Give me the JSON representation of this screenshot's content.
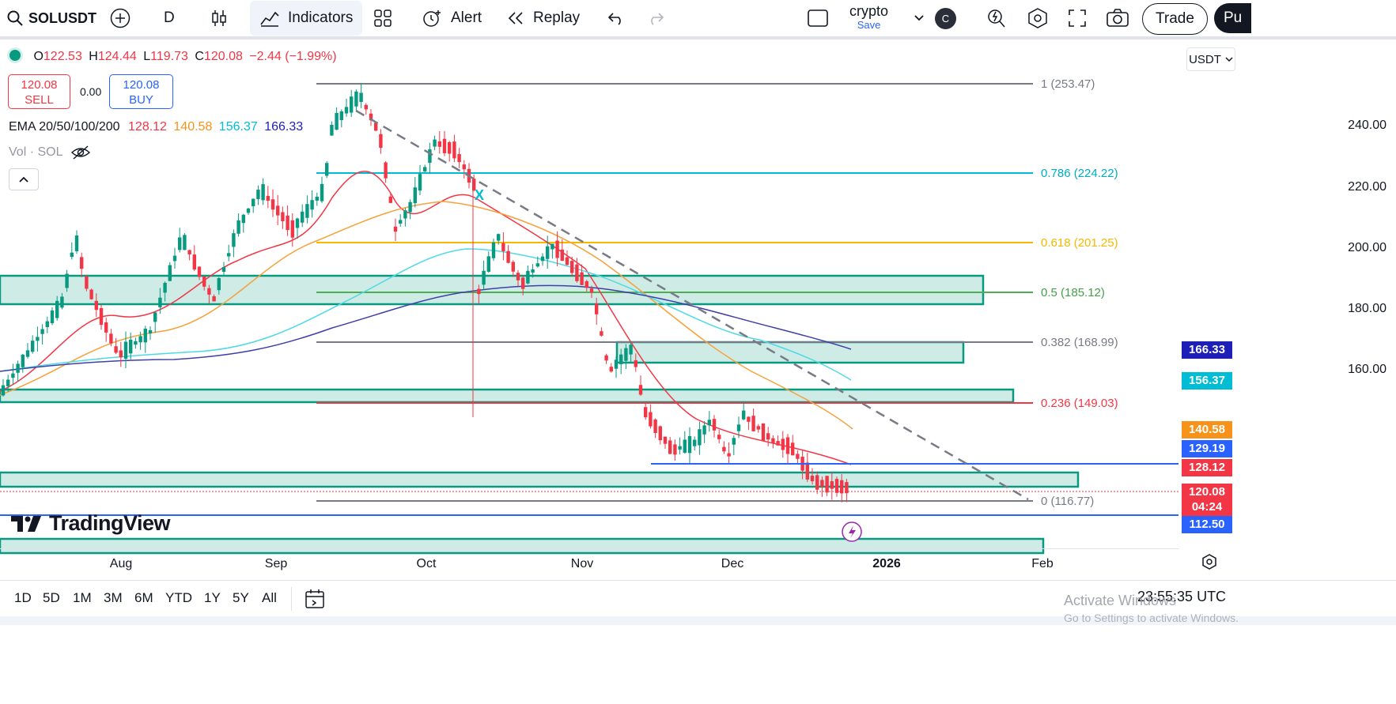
{
  "toolbar": {
    "symbol": "SOLUSDT",
    "interval": "D",
    "indicators_label": "Indicators",
    "alert_label": "Alert",
    "replay_label": "Replay",
    "layout_name": "crypto",
    "save_label": "Save",
    "avatar_letter": "C",
    "trade_label": "Trade",
    "publish_label": "Pu"
  },
  "legend": {
    "o_label": "O",
    "open": "122.53",
    "h_label": "H",
    "high": "124.44",
    "l_label": "L",
    "low": "119.73",
    "c_label": "C",
    "close": "120.08",
    "change": "−2.44 (−1.99%)",
    "sell_price": "120.08",
    "sell_label": "SELL",
    "spread": "0.00",
    "buy_price": "120.08",
    "buy_label": "BUY",
    "ema_label": "EMA 20/50/100/200",
    "ema20": "128.12",
    "ema50": "140.58",
    "ema100": "156.37",
    "ema200": "166.33",
    "vol_label": "Vol · SOL"
  },
  "colors": {
    "up": "#089981",
    "down": "#f23645",
    "ema20": "#f23645",
    "ema50": "#f7a13b",
    "ema100": "#4dd9e6",
    "ema200": "#3f3fa8",
    "fib_1": "#787b86",
    "fib_786": "#00bcd4",
    "fib_618": "#f5b800",
    "fib_5": "#4caf50",
    "fib_382": "#787b86",
    "fib_236": "#f23645",
    "fib_0": "#787b86",
    "zone": "#089981",
    "hline": "#2962ff"
  },
  "currency_selector": "USDT",
  "price_axis": [
    "240.00",
    "220.00",
    "200.00",
    "180.00",
    "160.00"
  ],
  "price_tags": [
    {
      "label": "166.33",
      "color": "#1e1eb8"
    },
    {
      "label": "156.37",
      "color": "#00bcd4"
    },
    {
      "label": "140.58",
      "color": "#f7931a"
    },
    {
      "label": "129.19",
      "color": "#2962ff"
    },
    {
      "label": "128.12",
      "color": "#f23645"
    },
    {
      "label": "120.08",
      "color": "#f23645"
    },
    {
      "label": "04:24",
      "color": "#f23645"
    },
    {
      "label": "112.50",
      "color": "#2962ff"
    }
  ],
  "fib_levels": [
    {
      "label": "1 (253.47)",
      "value": 253.47
    },
    {
      "label": "0.786 (224.22)",
      "value": 224.22
    },
    {
      "label": "0.618 (201.25)",
      "value": 201.25
    },
    {
      "label": "0.5 (185.12)",
      "value": 185.12
    },
    {
      "label": "0.382 (168.99)",
      "value": 168.99
    },
    {
      "label": "0.236 (149.03)",
      "value": 149.03
    },
    {
      "label": "0 (116.77)",
      "value": 116.77
    }
  ],
  "time_axis": [
    "Aug",
    "Sep",
    "Oct",
    "Nov",
    "Dec",
    "2026",
    "Feb"
  ],
  "brand": "TradingView",
  "ranges": [
    "1D",
    "5D",
    "1M",
    "3M",
    "6M",
    "YTD",
    "1Y",
    "5Y",
    "All"
  ],
  "clock": "23:55:35 UTC",
  "watermark": {
    "line1": "Activate Windows",
    "line2": "Go to Settings to activate Windows."
  }
}
